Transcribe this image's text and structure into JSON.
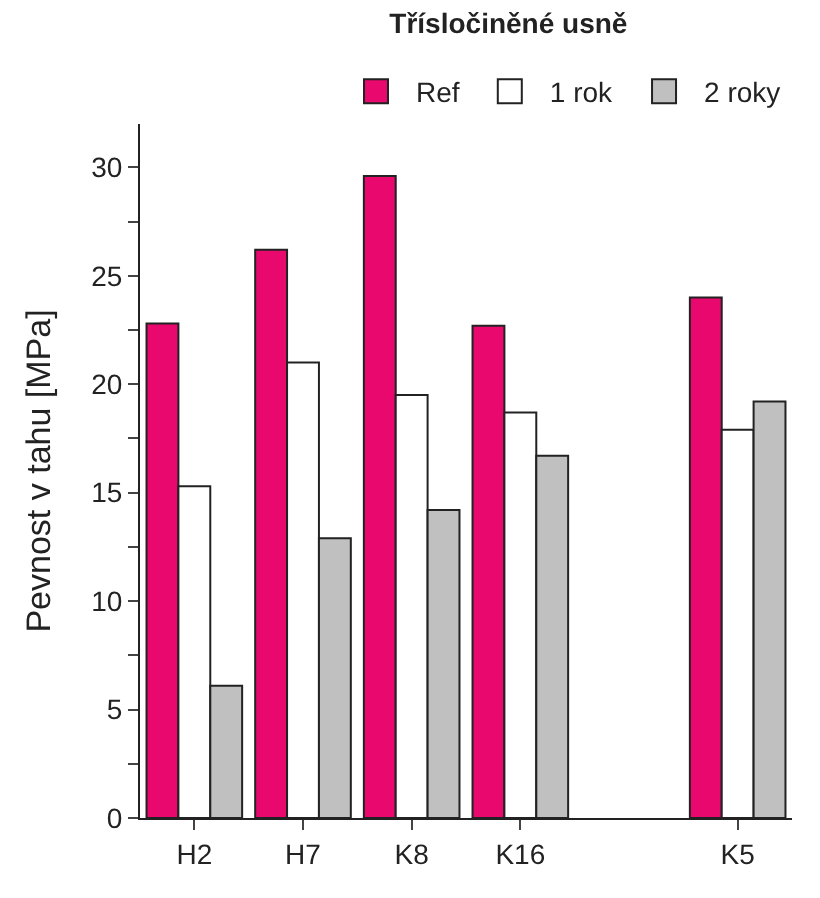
{
  "chart_data": {
    "type": "bar",
    "title": "Třísločiněné usně",
    "ylabel": "Pevnost v tahu [MPa]",
    "categories": [
      "H2",
      "H7",
      "K8",
      "K16",
      null,
      "K5"
    ],
    "series": [
      {
        "name": "Ref",
        "color": "#e8086e",
        "values": [
          22.8,
          26.2,
          29.6,
          22.7,
          null,
          24.0
        ]
      },
      {
        "name": "1 rok",
        "color": "#ffffff",
        "values": [
          15.3,
          21.0,
          19.5,
          18.7,
          null,
          17.9
        ]
      },
      {
        "name": "2 roky",
        "color": "#c0c0c0",
        "values": [
          6.1,
          12.9,
          14.2,
          16.7,
          null,
          19.2
        ]
      }
    ],
    "ylim": [
      0,
      32
    ],
    "yticks": [
      0,
      {
        "value": 2.5,
        "label": null
      },
      5,
      {
        "value": 7.5,
        "label": null
      },
      10,
      {
        "value": 12.5,
        "label": null
      },
      15,
      {
        "value": 17.5,
        "label": null
      },
      20,
      {
        "value": 22.5,
        "label": null
      },
      25,
      {
        "value": 27.5,
        "label": null
      },
      30
    ],
    "legend": "top right"
  }
}
